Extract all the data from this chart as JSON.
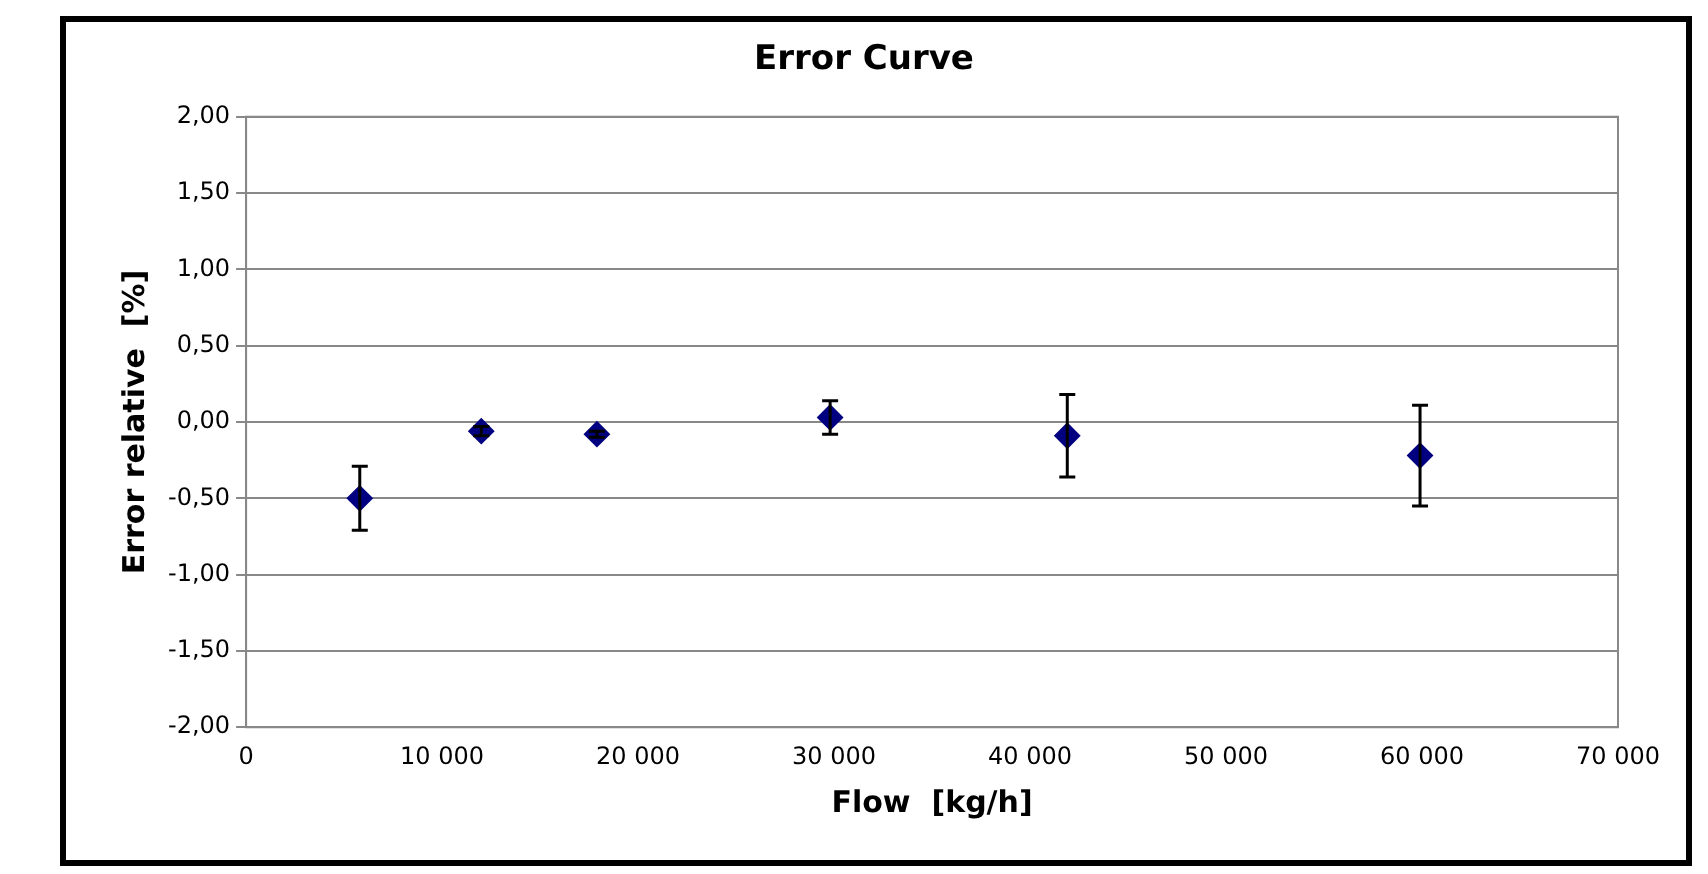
{
  "chart_data": {
    "type": "scatter",
    "title": "Error Curve",
    "xlabel": "Flow  [kg/h]",
    "ylabel": "Error relative  [%]",
    "x": [
      5800,
      12000,
      17900,
      29800,
      41900,
      59900
    ],
    "series": [
      {
        "color": "#000080",
        "values": [
          -0.5,
          -0.06,
          -0.08,
          0.03,
          -0.09,
          -0.22
        ],
        "errors": [
          0.21,
          0.03,
          0.02,
          0.11,
          0.27,
          0.33
        ]
      }
    ],
    "xlim": [
      0,
      70000
    ],
    "xticks": [
      0,
      {
        "value": 10000,
        "label": "10 000"
      },
      {
        "value": 20000,
        "label": "20 000"
      },
      {
        "value": 30000,
        "label": "30 000"
      },
      {
        "value": 40000,
        "label": "40 000"
      },
      {
        "value": 50000,
        "label": "50 000"
      },
      {
        "value": 60000,
        "label": "60 000"
      },
      {
        "value": 70000,
        "label": "70 000"
      }
    ],
    "ylim": [
      -2,
      2
    ],
    "yticks": [
      {
        "value": -2,
        "label": "-2,00"
      },
      {
        "value": -1.5,
        "label": "-1,50"
      },
      {
        "value": -1,
        "label": "-1,00"
      },
      {
        "value": -0.5,
        "label": "-0,50"
      },
      {
        "value": 0,
        "label": "0,00"
      },
      {
        "value": 0.5,
        "label": "0,50"
      },
      {
        "value": 1,
        "label": "1,00"
      },
      {
        "value": 1.5,
        "label": "1,50"
      },
      {
        "value": 2,
        "label": "2,00"
      }
    ],
    "grid": "y",
    "marker": "diamond",
    "legend": false
  }
}
